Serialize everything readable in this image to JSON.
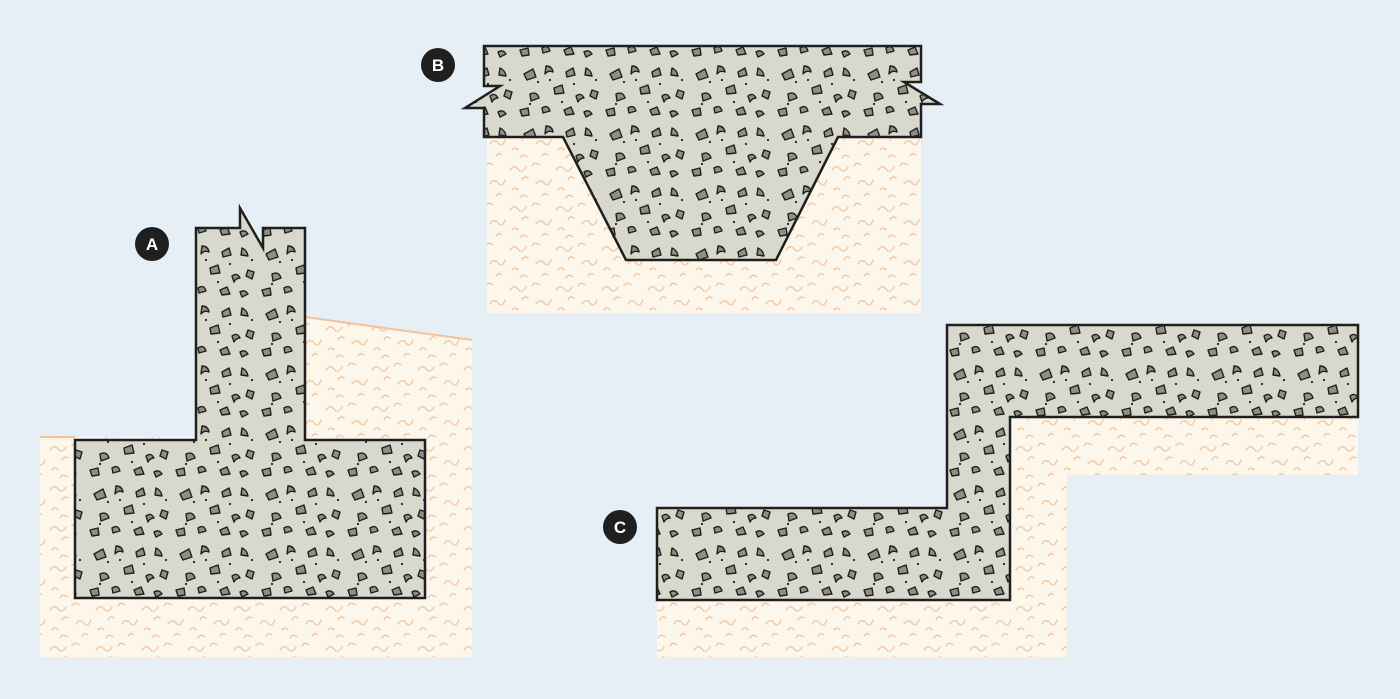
{
  "colors": {
    "background": "#e6eff6",
    "soil": "#fdf6ea",
    "soil_hatch": "#f1c39a",
    "concrete": "#d8d8cc",
    "aggregate": "#8f8f86",
    "outline": "#1f1f1f",
    "badge": "#1f1f1f",
    "badge_text": "#ffffff"
  },
  "labels": {
    "a": "A",
    "b": "B",
    "c": "C"
  }
}
